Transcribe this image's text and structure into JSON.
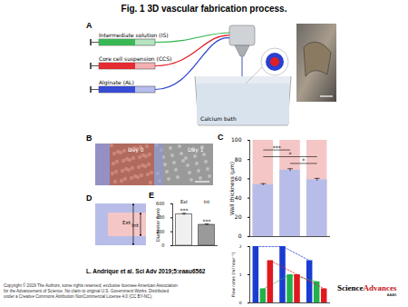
{
  "figure": {
    "title": "Fig. 1 3D vascular fabrication process.",
    "panels": {
      "A": {
        "label": "A",
        "inputs": [
          {
            "label": "Intermediate solution (IS)",
            "color": "#2db34a"
          },
          {
            "label": "Core cell suspension (CCS)",
            "color": "#e31e24"
          },
          {
            "label": "Alginate (AL)",
            "color": "#2b3fd1"
          }
        ],
        "bath": "Calcium bath"
      },
      "B": {
        "label": "B",
        "images": [
          "Day 0",
          "Day 1"
        ]
      },
      "C": {
        "label": "C"
      },
      "D": {
        "label": "D",
        "dimensions": [
          "Ext",
          "Int"
        ]
      },
      "E": {
        "label": "E"
      }
    },
    "citation": "L. Andrique et al. Sci Adv 2019;5:eaau6562",
    "copyright": [
      "Copyright © 2019 The Authors, some rights reserved; exclusive licensee American Association",
      "for the Advancement of Science. No claim to original U.S. Government Works. Distributed",
      "under a Creative Commons Attribution NonCommercial License 4.0 (CC BY-NC)."
    ],
    "logo": [
      "Science",
      "Advances"
    ],
    "logo_sub": "AAAS"
  },
  "chart_data": [
    {
      "type": "bar",
      "ylabel": "Wall thickness (µm)",
      "categories": [
        null,
        null,
        null
      ],
      "series": [
        {
          "color": "#f5c6c6",
          "values": [
            100,
            100,
            100
          ]
        },
        {
          "color": "#b7bde8",
          "values": [
            54,
            69,
            59
          ],
          "errors": [
            1,
            1.5,
            1.5
          ]
        }
      ],
      "ylim": [
        0,
        100
      ],
      "yticks": [
        0,
        20,
        40,
        60,
        80,
        100
      ],
      "annotations": [
        {
          "from": 0,
          "to": 1,
          "label": "***"
        },
        {
          "from": 0,
          "to": 2,
          "label": "*"
        },
        {
          "from": 1,
          "to": 2,
          "label": "*"
        }
      ],
      "tick_labels": "y"
    },
    {
      "type": "bar",
      "ylabel": "Diameter (µm)",
      "categories": [
        "Ext",
        "Int"
      ],
      "values": [
        450,
        300
      ],
      "errors": [
        15,
        12
      ],
      "colors": [
        "#f0f0f0",
        "#9a9a9a"
      ],
      "annotations": [
        "***",
        "***"
      ],
      "ylim": [
        0,
        600
      ],
      "yticks": [
        0,
        200,
        400,
        600
      ]
    },
    {
      "type": "bar",
      "ylabel": "Flow rates (ml hour⁻¹)",
      "categories": [
        null,
        null,
        null
      ],
      "series": [
        {
          "color": "#1a3cd1",
          "values": [
            2,
            2,
            1.5
          ],
          "line_style": "dashed"
        },
        {
          "color": "#22b24c",
          "values": [
            0.5,
            1,
            0.75
          ],
          "line_style": "dashed"
        },
        {
          "color": "#e0191f",
          "values": [
            1.5,
            1,
            0.5
          ],
          "line_style": "dashed"
        }
      ],
      "ylim": [
        0,
        2
      ],
      "yticks": [
        0,
        1,
        2
      ],
      "tick_labels": "y"
    }
  ]
}
